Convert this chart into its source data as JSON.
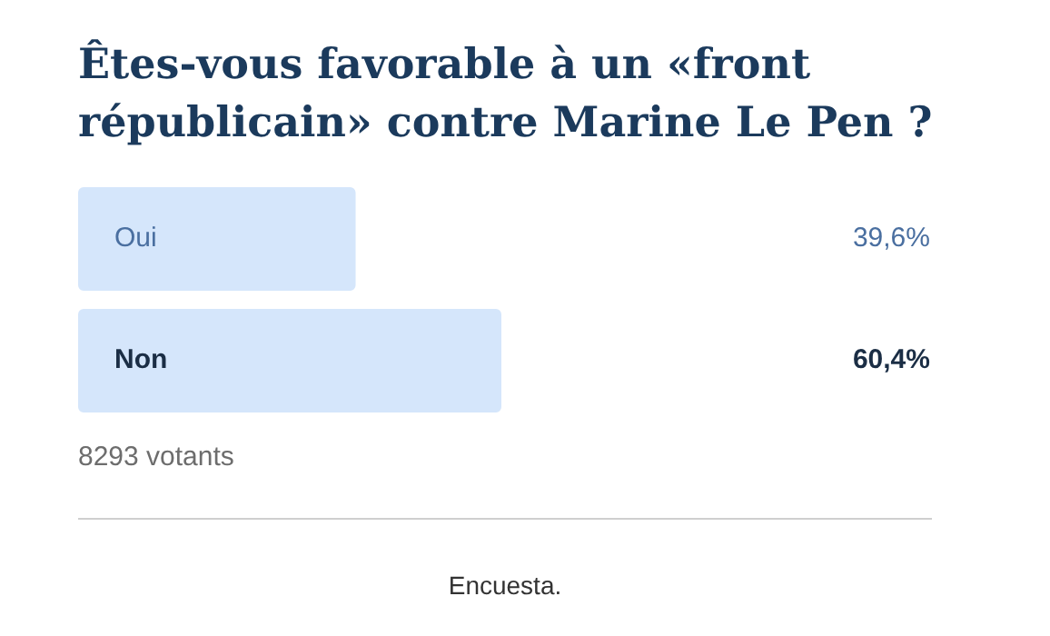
{
  "chart_data": {
    "type": "bar",
    "orientation": "horizontal",
    "title": "Êtes-vous favorable à un «front républicain» contre Marine Le Pen ?",
    "categories": [
      "Oui",
      "Non"
    ],
    "values": [
      39.6,
      60.4
    ],
    "color": "#d5e6fb",
    "value_labels": [
      "39,6%",
      "60,4%"
    ],
    "tick_labels": false,
    "legend": false,
    "annotations": [
      "8293 votants",
      "Encuesta."
    ]
  }
}
